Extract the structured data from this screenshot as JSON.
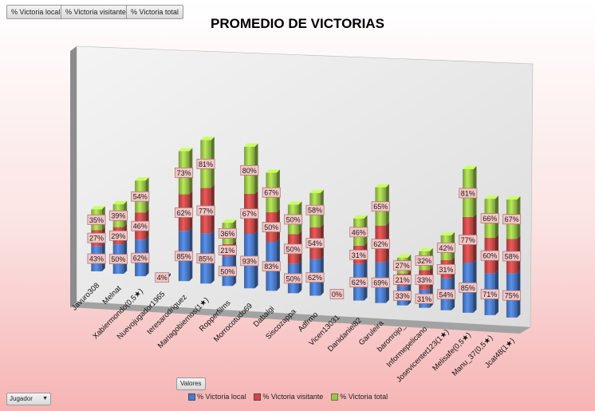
{
  "filter_buttons": [
    "% Victoria local",
    "% Victoria visitante",
    "% Victoria total"
  ],
  "valores_button": "Valores",
  "jugador_button": "Jugador",
  "colors": {
    "local": "#4a7ac8",
    "visitante": "#c84a4a",
    "total": "#9ac44a"
  },
  "chart_data": {
    "type": "bar",
    "stacked": true,
    "three_d": true,
    "title": "PROMEDIO DE VICTORIAS",
    "legend_position": "bottom",
    "categories": [
      "Javuro308",
      "Melnat",
      "Xabiermondo(0,5★)",
      "Nuevojugador1965",
      "teresarodriguez",
      "Mariagobiernos(1★)",
      "Ropperfilms",
      "Morrocotudo69",
      "Dabalgi",
      "Siscozappa",
      "Adfrmo",
      "Vicen13031",
      "Danidaniel82",
      "Garuleira",
      "baronrojo_",
      "Informepelicano",
      "Josevicentet123(1★)",
      "Melisafe(0,5★)",
      "Manu_37(0,5★)",
      "Jcat48(1★)"
    ],
    "series": [
      {
        "name": "% Victoria local",
        "values": [
          43,
          50,
          62,
          4,
          85,
          85,
          50,
          93,
          83,
          50,
          62,
          0,
          62,
          69,
          33,
          31,
          54,
          85,
          71,
          75
        ]
      },
      {
        "name": "% Victoria visitante",
        "values": [
          27,
          29,
          46,
          null,
          62,
          77,
          21,
          67,
          50,
          50,
          54,
          null,
          31,
          62,
          21,
          33,
          31,
          77,
          60,
          58
        ]
      },
      {
        "name": "% Victoria total",
        "values": [
          35,
          39,
          54,
          null,
          73,
          81,
          36,
          80,
          67,
          50,
          58,
          null,
          46,
          65,
          27,
          32,
          42,
          81,
          66,
          67
        ]
      }
    ],
    "value_labels": [
      [
        "43%",
        "50%",
        "62%",
        "4%",
        "85%",
        "85%",
        "50%",
        "93%",
        "83%",
        "50%",
        "62%",
        "0%",
        "62%",
        "69%",
        "33%",
        "31%",
        "54%",
        "85%",
        "71%",
        "75%"
      ],
      [
        "27%",
        "29%",
        "46%",
        "",
        "62%",
        "77%",
        "21%",
        "67%",
        "50%",
        "50%",
        "54%",
        "",
        "31%",
        "62%",
        "21%",
        "33%",
        "31%",
        "77%",
        "60%",
        "58%"
      ],
      [
        "35%",
        "39%",
        "54%",
        "",
        "73%",
        "81%",
        "36%",
        "80%",
        "67%",
        "50%",
        "58%",
        "",
        "46%",
        "65%",
        "27%",
        "32%",
        "42%",
        "81%",
        "66%",
        "67%"
      ]
    ],
    "grid": false
  }
}
